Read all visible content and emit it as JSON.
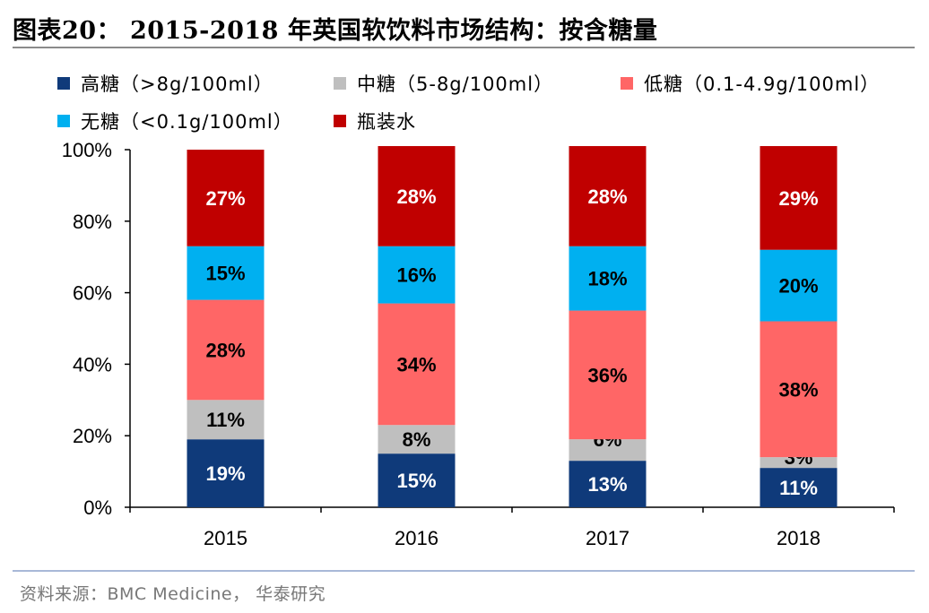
{
  "title": "图表20： 2015-2018 年英国软饮料市场结构：按含糖量",
  "source": "资料来源：BMC Medicine， 华泰研究",
  "chart_data": {
    "type": "bar",
    "stacked": true,
    "categories": [
      "2015",
      "2016",
      "2017",
      "2018"
    ],
    "series": [
      {
        "name": "高糖（>8g/100ml）",
        "color": "#0f3a7a",
        "label_color": "#ffffff",
        "values": [
          19,
          15,
          13,
          11
        ]
      },
      {
        "name": "中糖（5-8g/100ml）",
        "color": "#bfbfbf",
        "label_color": "#000000",
        "values": [
          11,
          8,
          6,
          3
        ]
      },
      {
        "name": "低糖（0.1-4.9g/100ml）",
        "color": "#ff6666",
        "label_color": "#000000",
        "values": [
          28,
          34,
          36,
          38
        ]
      },
      {
        "name": "无糖（<0.1g/100ml）",
        "color": "#00b0f0",
        "label_color": "#000000",
        "values": [
          15,
          16,
          18,
          20
        ]
      },
      {
        "name": "瓶装水",
        "color": "#c00000",
        "label_color": "#ffffff",
        "values": [
          27,
          28,
          28,
          29
        ]
      }
    ],
    "y_ticks": [
      "0%",
      "20%",
      "40%",
      "60%",
      "80%",
      "100%"
    ],
    "ylim": [
      0,
      100
    ],
    "unit": "%",
    "grid": false,
    "legend_position": "top"
  }
}
